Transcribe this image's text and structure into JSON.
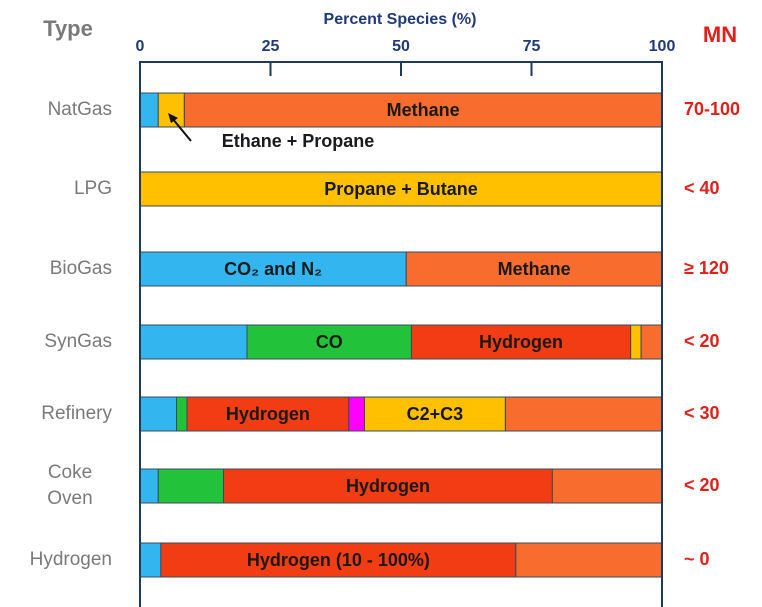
{
  "chart_data": {
    "type": "bar",
    "orientation": "horizontal",
    "stacked": true,
    "title": "Percent Species (%)",
    "category_header": "Type",
    "side_header": "MN",
    "annotation": "Ethane + Propane",
    "xlim": [
      0,
      100
    ],
    "xticks": [
      0,
      25,
      50,
      75,
      100
    ],
    "categories": [
      "NatGas",
      "LPG",
      "BioGas",
      "SynGas",
      "Refinery",
      [
        "Coke",
        "Oven"
      ],
      "Hydrogen"
    ],
    "side_values": [
      "70-100",
      "< 40",
      "≥ 120",
      "< 20",
      "< 30",
      "< 20",
      "~ 0"
    ],
    "rows": [
      {
        "segments": [
          {
            "value": 3.5,
            "color": "#33b5f0"
          },
          {
            "value": 5,
            "color": "#ffc000"
          },
          {
            "value": 91.5,
            "color": "#f86c2e",
            "label": "Methane"
          }
        ]
      },
      {
        "segments": [
          {
            "value": 100,
            "color": "#ffc000",
            "label": "Propane + Butane"
          }
        ]
      },
      {
        "segments": [
          {
            "value": 51,
            "color": "#33b5f0",
            "label": "CO₂ and N₂"
          },
          {
            "value": 49,
            "color": "#f86c2e",
            "label": "Methane"
          }
        ]
      },
      {
        "segments": [
          {
            "value": 20.5,
            "color": "#33b5f0"
          },
          {
            "value": 31.5,
            "color": "#22c33a",
            "label": "CO"
          },
          {
            "value": 42,
            "color": "#f23c14",
            "label": "Hydrogen"
          },
          {
            "value": 2,
            "color": "#ffc000"
          },
          {
            "value": 4,
            "color": "#f86c2e"
          }
        ]
      },
      {
        "segments": [
          {
            "value": 7,
            "color": "#33b5f0"
          },
          {
            "value": 2,
            "color": "#22c33a"
          },
          {
            "value": 31,
            "color": "#f23c14",
            "label": "Hydrogen"
          },
          {
            "value": 3,
            "color": "#ff00ff"
          },
          {
            "value": 27,
            "color": "#ffc000",
            "label": "C2+C3"
          },
          {
            "value": 30,
            "color": "#f86c2e"
          }
        ]
      },
      {
        "segments": [
          {
            "value": 3.5,
            "color": "#33b5f0"
          },
          {
            "value": 12.5,
            "color": "#22c33a"
          },
          {
            "value": 63,
            "color": "#f23c14",
            "label": "Hydrogen"
          },
          {
            "value": 21,
            "color": "#f86c2e"
          }
        ]
      },
      {
        "segments": [
          {
            "value": 4,
            "color": "#33b5f0"
          },
          {
            "value": 68,
            "color": "#f23c14",
            "label": "Hydrogen (10 - 100%)"
          },
          {
            "value": 28,
            "color": "#f86c2e"
          }
        ]
      }
    ]
  }
}
